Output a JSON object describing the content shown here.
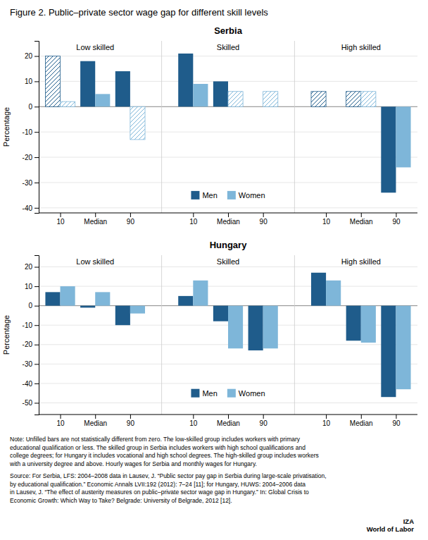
{
  "title": "Figure 2. Public–private sector wage gap for different skill levels",
  "annotations": [
    "Note: Unfilled bars are not statistically different from zero.  The low-skilled group includes workers with primary\neducational qualification or less. The skilled group in Serbia includes workers with high school qualifications and\ncollege degrees; for Hungary it includes vocational and high school degrees. The high-skilled group includes workers\nwith a university degree and above. Hourly wages for Serbia and monthly wages for Hungary.",
    "Source: For Serbia, LFS: 2004–2008 data in Lausev, J. “Public sector pay gap in Serbia during large-scale privatisation,\nby educational qualification.” Economic Annals LVII:192 (2012): 7–24 [11]; for Hungary, HUWS: 2004–2006 data\nin Lausev, J. “The effect of austerity measures on public–private sector wage gap in Hungary.” In: Global Crisis to\nEconomic Growth: Which Way to Take? Belgrade: University of Belgrade, 2012 [12].",
    "IZA\nWorld of Labor"
  ],
  "chart_data": [
    {
      "type": "bar",
      "title": "Serbia",
      "y_label": "Percentage",
      "categories": [
        "10",
        "Median",
        "90",
        "10",
        "Median",
        "90",
        "10",
        "Median",
        "90"
      ],
      "annotations": [
        "Low skilled",
        "Skilled",
        "High skilled"
      ],
      "series": [
        {
          "name": "Men",
          "color": "#1F5C8B",
          "values": [
            20,
            18,
            14,
            21,
            10,
            0,
            6,
            6,
            -34
          ],
          "hatched": [
            true,
            false,
            false,
            false,
            false,
            true,
            true,
            true,
            false
          ]
        },
        {
          "name": "Women",
          "color": "#7EB6D9",
          "values": [
            2,
            5,
            -13,
            9,
            6,
            6,
            0,
            6,
            -24
          ],
          "hatched": [
            true,
            false,
            true,
            false,
            true,
            true,
            true,
            true,
            false
          ]
        }
      ],
      "ylim": [
        -42,
        26
      ],
      "yticks": [
        -40,
        -30,
        -20,
        -10,
        0,
        10,
        20
      ],
      "grid": true,
      "legend": "bottom"
    },
    {
      "type": "bar",
      "title": "Hungary",
      "y_label": "Percentage",
      "categories": [
        "10",
        "Median",
        "90",
        "10",
        "Median",
        "90",
        "10",
        "Median",
        "90"
      ],
      "annotations": [
        "Low skilled",
        "Skilled",
        "High skilled"
      ],
      "series": [
        {
          "name": "Men",
          "color": "#1F5C8B",
          "values": [
            7,
            -1,
            -10,
            5,
            -8,
            -23,
            17,
            -18,
            -47
          ],
          "hatched": [
            false,
            false,
            false,
            false,
            false,
            false,
            false,
            false,
            false
          ]
        },
        {
          "name": "Women",
          "color": "#7EB6D9",
          "values": [
            10,
            7,
            -4,
            13,
            -22,
            -22,
            13,
            -19,
            -43
          ],
          "hatched": [
            false,
            false,
            false,
            false,
            false,
            false,
            false,
            false,
            false
          ]
        }
      ],
      "ylim": [
        -56,
        26
      ],
      "yticks": [
        -50,
        -40,
        -30,
        -20,
        -10,
        0,
        10,
        20
      ],
      "grid": true,
      "legend": "bottom"
    }
  ]
}
